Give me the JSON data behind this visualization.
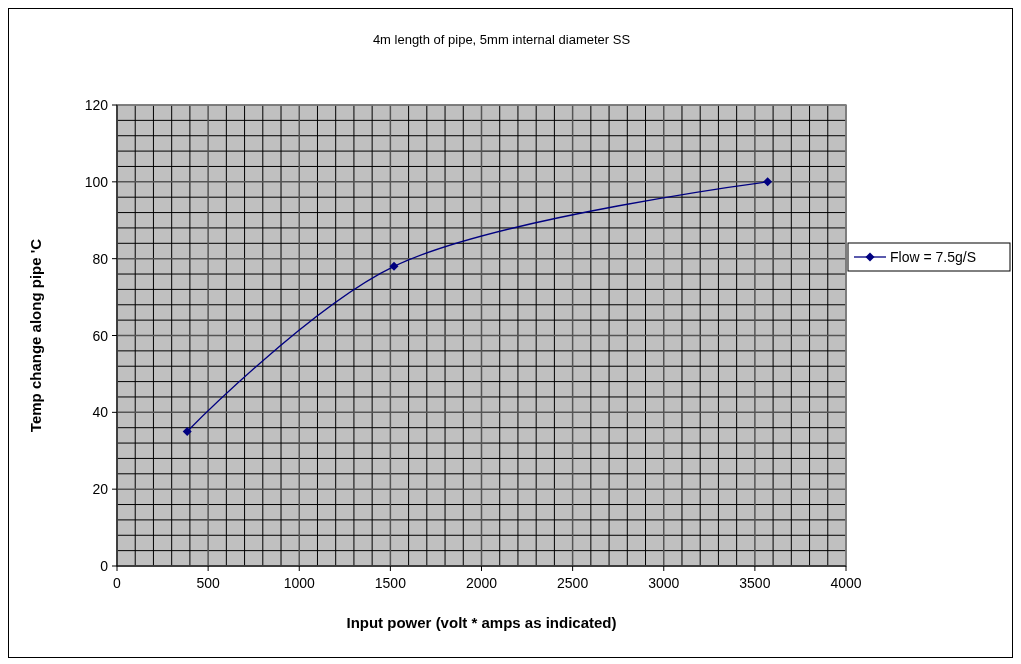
{
  "chart_data": {
    "type": "line",
    "title": "4m length of pipe, 5mm internal diameter SS",
    "xlabel": "Input power (volt * amps as indicated)",
    "ylabel": "Temp change along pipe 'C",
    "x": [
      385,
      1520,
      3570
    ],
    "series": [
      {
        "name": "Flow = 7.5g/S",
        "color": "#000080",
        "values": [
          35,
          78,
          100
        ]
      }
    ],
    "xlim": [
      0,
      4000
    ],
    "xticks": [
      0,
      500,
      1000,
      1500,
      2000,
      2500,
      3000,
      3500,
      4000
    ],
    "ylim": [
      0,
      120
    ],
    "yticks": [
      0,
      20,
      40,
      60,
      80,
      100,
      120
    ],
    "grid": true,
    "legend": "right",
    "marker": "diamond",
    "line_style": "solid"
  }
}
